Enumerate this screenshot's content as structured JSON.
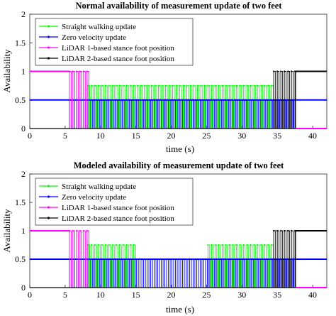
{
  "chart_data": [
    {
      "type": "line",
      "title": "Normal availability of measurement update of two feet",
      "xlabel": "time (s)",
      "ylabel": "Availability",
      "xlim": [
        0,
        42
      ],
      "ylim": [
        0,
        2
      ],
      "xticks": [
        "0",
        "5",
        "10",
        "15",
        "20",
        "25",
        "30",
        "35",
        "40"
      ],
      "yticks": [
        "0",
        "0.5",
        "1",
        "1.5",
        "2"
      ],
      "grid": false,
      "legend_position": "top-left",
      "series": [
        {
          "name": "Straight walking update",
          "color": "#00ff00",
          "pulse_value": 0.75,
          "pulse_start": 8.2,
          "pulse_end": 34.5,
          "pulse_period": 0.5
        },
        {
          "name": "Zero velocity update",
          "color": "#0000ff",
          "pulse_value": 0.5,
          "pulse_start": 5.6,
          "pulse_end": 37.6,
          "pulse_period": 0.5
        },
        {
          "name": "LiDAR 1-based stance foot position",
          "color": "#ff00ff",
          "solid_value": 1,
          "solid_range": [
            0,
            5.6
          ],
          "pulse_value": 1,
          "pulse_start": 5.6,
          "pulse_end": 8.6,
          "pulse_period": 0.5,
          "tail_value": 0,
          "tail_range": [
            37.6,
            42
          ]
        },
        {
          "name": "LiDAR 2-based stance foot position",
          "color": "#000000",
          "baseline_value": 0,
          "baseline_range": [
            0,
            37.6
          ],
          "pulse_value": 1,
          "pulse_start": 34.5,
          "pulse_end": 37.6,
          "pulse_period": 0.5,
          "tail_value": 1,
          "tail_range": [
            37.6,
            42
          ]
        }
      ]
    },
    {
      "type": "line",
      "title": "Modeled availability of measurement update of two feet",
      "xlabel": "time (s)",
      "ylabel": "Availability",
      "xlim": [
        0,
        42
      ],
      "ylim": [
        0,
        2
      ],
      "xticks": [
        "0",
        "5",
        "10",
        "15",
        "20",
        "25",
        "30",
        "35",
        "40"
      ],
      "yticks": [
        "0",
        "0.5",
        "1",
        "1.5",
        "2"
      ],
      "grid": false,
      "legend_position": "top-left",
      "series": [
        {
          "name": "Straight walking update",
          "color": "#00ff00",
          "pulse_value": 0.75,
          "pulse_start": 8.2,
          "pulse_end": 34.5,
          "pulse_period": 0.5,
          "gap_range": [
            15,
            25
          ]
        },
        {
          "name": "Zero velocity update",
          "color": "#0000ff",
          "pulse_value": 0.5,
          "pulse_start": 5.6,
          "pulse_end": 37.6,
          "pulse_period": 0.5
        },
        {
          "name": "LiDAR 1-based stance foot position",
          "color": "#ff00ff",
          "solid_value": 1,
          "solid_range": [
            0,
            5.6
          ],
          "pulse_value": 1,
          "pulse_start": 5.6,
          "pulse_end": 8.6,
          "pulse_period": 0.5,
          "tail_value": 0,
          "tail_range": [
            37.6,
            42
          ]
        },
        {
          "name": "LiDAR 2-based stance foot position",
          "color": "#000000",
          "baseline_value": 0,
          "baseline_range": [
            0,
            37.6
          ],
          "pulse_value": 1,
          "pulse_start": 34.5,
          "pulse_end": 37.6,
          "pulse_period": 0.5,
          "tail_value": 1,
          "tail_range": [
            37.6,
            42
          ]
        }
      ]
    }
  ]
}
